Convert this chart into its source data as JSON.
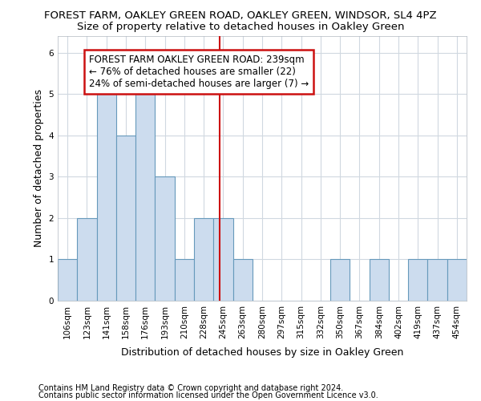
{
  "title1": "FOREST FARM, OAKLEY GREEN ROAD, OAKLEY GREEN, WINDSOR, SL4 4PZ",
  "title2": "Size of property relative to detached houses in Oakley Green",
  "xlabel": "Distribution of detached houses by size in Oakley Green",
  "ylabel": "Number of detached properties",
  "categories": [
    "106sqm",
    "123sqm",
    "141sqm",
    "158sqm",
    "176sqm",
    "193sqm",
    "210sqm",
    "228sqm",
    "245sqm",
    "263sqm",
    "280sqm",
    "297sqm",
    "315sqm",
    "332sqm",
    "350sqm",
    "367sqm",
    "384sqm",
    "402sqm",
    "419sqm",
    "437sqm",
    "454sqm"
  ],
  "values": [
    1,
    2,
    5,
    4,
    5,
    3,
    1,
    2,
    2,
    1,
    0,
    0,
    0,
    0,
    1,
    0,
    1,
    0,
    1,
    1,
    1
  ],
  "bar_color": "#ccdcee",
  "bar_edge_color": "#6699bb",
  "grid_color": "#d0d8e0",
  "vline_color": "#cc1111",
  "annotation_box_color": "#cc1111",
  "annotation_text_line1": "FOREST FARM OAKLEY GREEN ROAD: 239sqm",
  "annotation_text_line2": "← 76% of detached houses are smaller (22)",
  "annotation_text_line3": "24% of semi-detached houses are larger (7) →",
  "ylim": [
    0,
    6.4
  ],
  "yticks": [
    0,
    1,
    2,
    3,
    4,
    5,
    6
  ],
  "footnote1": "Contains HM Land Registry data © Crown copyright and database right 2024.",
  "footnote2": "Contains public sector information licensed under the Open Government Licence v3.0.",
  "background_color": "#ffffff",
  "plot_background": "#ffffff",
  "title1_fontsize": 9.5,
  "title2_fontsize": 9.5,
  "xlabel_fontsize": 9,
  "ylabel_fontsize": 9,
  "tick_fontsize": 7.5,
  "annotation_fontsize": 8.5,
  "footnote_fontsize": 7
}
